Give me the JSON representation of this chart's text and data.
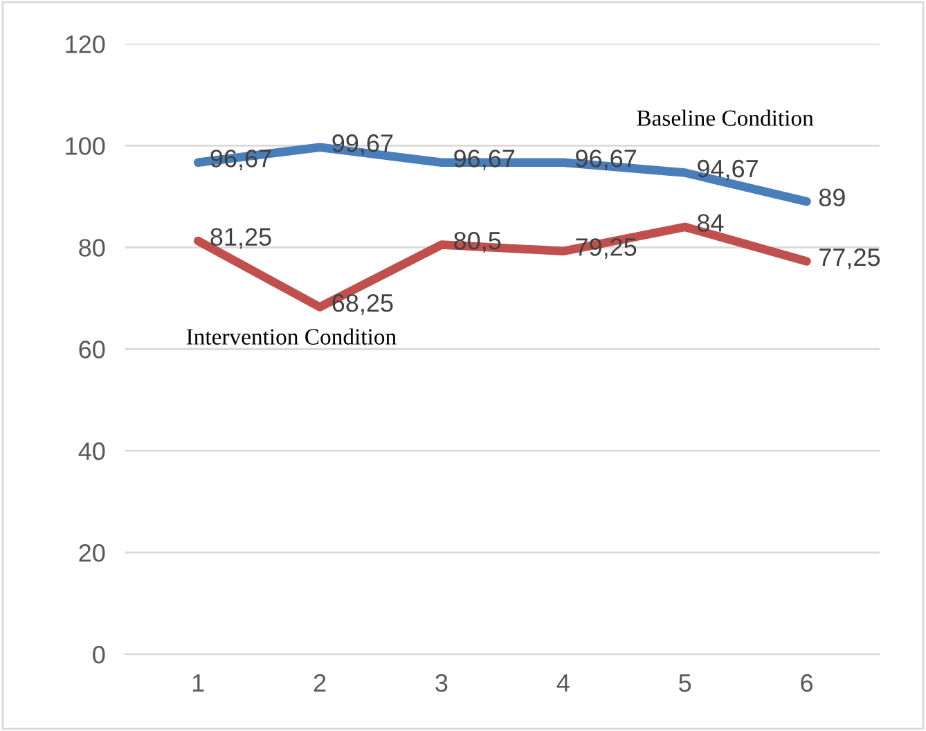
{
  "chart_data": {
    "type": "line",
    "categories": [
      "1",
      "2",
      "3",
      "4",
      "5",
      "6"
    ],
    "series": [
      {
        "name": "Baseline Condition",
        "color": "#4a7ebb",
        "values": [
          96.67,
          99.67,
          96.67,
          96.67,
          94.67,
          89
        ],
        "value_labels": [
          "96,67",
          "99,67",
          "96,67",
          "96,67",
          "94,67",
          "89"
        ]
      },
      {
        "name": "Intervention Condition",
        "color": "#c0504d",
        "values": [
          81.25,
          68.25,
          80.5,
          79.25,
          84,
          77.25
        ],
        "value_labels": [
          "81,25",
          "68,25",
          "80,5",
          "79,25",
          "84",
          "77,25"
        ]
      }
    ],
    "ylim": [
      0,
      120
    ],
    "yticks": [
      0,
      20,
      40,
      60,
      80,
      100,
      120
    ],
    "grid": "y",
    "legend": false,
    "marker": "none",
    "line_style": "solid"
  }
}
